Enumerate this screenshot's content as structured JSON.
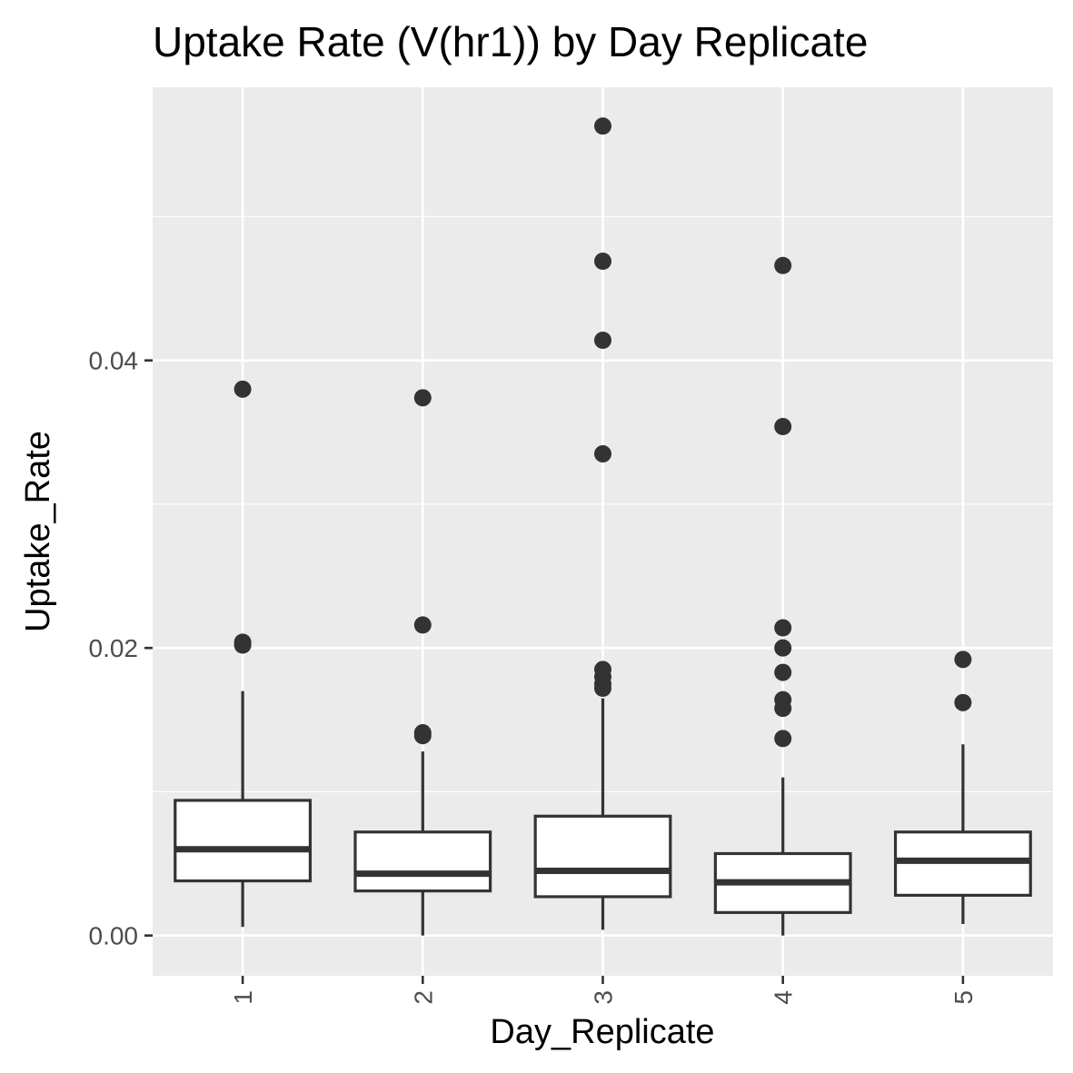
{
  "chart_data": {
    "type": "boxplot",
    "title": "Uptake Rate (V(hr1)) by Day Replicate",
    "xlabel": "Day_Replicate",
    "ylabel": "Uptake_Rate",
    "categories": [
      "1",
      "2",
      "3",
      "4",
      "5"
    ],
    "y_ticks": [
      {
        "value": 0.0,
        "label": "0.00"
      },
      {
        "value": 0.02,
        "label": "0.02"
      },
      {
        "value": 0.04,
        "label": "0.04"
      }
    ],
    "ylim": [
      -0.0028,
      0.059
    ],
    "grid": true,
    "x_tick_rotation": 90,
    "colors": {
      "panel": "#ebebeb",
      "grid": "#ffffff",
      "box_line": "#333333",
      "box_fill": "#ffffff",
      "outlier": "#333333"
    },
    "boxes": [
      {
        "category": "1",
        "whisker_low": 0.0006,
        "q1": 0.0038,
        "median": 0.006,
        "q3": 0.0094,
        "whisker_high": 0.017,
        "outliers": [
          0.038,
          0.0204,
          0.0202
        ]
      },
      {
        "category": "2",
        "whisker_low": 0.0,
        "q1": 0.0031,
        "median": 0.0043,
        "q3": 0.0072,
        "whisker_high": 0.0128,
        "outliers": [
          0.0374,
          0.0216,
          0.0141,
          0.0139
        ]
      },
      {
        "category": "3",
        "whisker_low": 0.0004,
        "q1": 0.0027,
        "median": 0.0045,
        "q3": 0.0083,
        "whisker_high": 0.0165,
        "outliers": [
          0.0563,
          0.0469,
          0.0414,
          0.0335,
          0.0185,
          0.018,
          0.0175,
          0.0172
        ]
      },
      {
        "category": "4",
        "whisker_low": 0.0,
        "q1": 0.0016,
        "median": 0.0037,
        "q3": 0.0057,
        "whisker_high": 0.011,
        "outliers": [
          0.0466,
          0.0354,
          0.0214,
          0.02,
          0.0183,
          0.0164,
          0.0158,
          0.0137
        ]
      },
      {
        "category": "5",
        "whisker_low": 0.0008,
        "q1": 0.0028,
        "median": 0.0052,
        "q3": 0.0072,
        "whisker_high": 0.0133,
        "outliers": [
          0.0192,
          0.0162
        ]
      }
    ]
  }
}
